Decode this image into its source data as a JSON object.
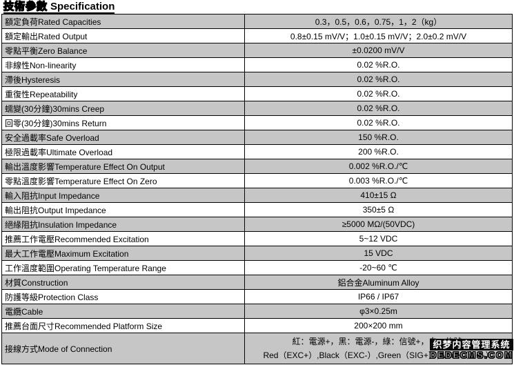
{
  "title": {
    "zh": "技術參數",
    "en": "Specification"
  },
  "colors": {
    "shaded_row": "#c6c6c6",
    "base_row": "#ffffff",
    "border": "#000000",
    "watermark_bg": "#0a0a0a"
  },
  "table": {
    "rows": [
      {
        "label": "額定負荷Rated Capacities",
        "value": "0.3，0.5，0.6，0.75，1，2（kg）"
      },
      {
        "label": "額定輸出Rated Output",
        "value": "0.8±0.15 mV/V；1.0±0.15 mV/V；2.0±0.2 mV/V"
      },
      {
        "label": "零點平衡Zero Balance",
        "value": "±0.0200 mV/V"
      },
      {
        "label": "非線性Non-linearity",
        "value": "0.02 %R.O."
      },
      {
        "label": "滯後Hysteresis",
        "value": "0.02 %R.O."
      },
      {
        "label": "重復性Repeatability",
        "value": "0.02 %R.O."
      },
      {
        "label": "蠕變(30分鐘)30mins Creep",
        "value": "0.02 %R.O."
      },
      {
        "label": "回零(30分鐘)30mins Return",
        "value": "0.02 %R.O."
      },
      {
        "label": "安全過載率Safe Overload",
        "value": "150 %R.O."
      },
      {
        "label": "極限過載率Ultimate Overload",
        "value": "200 %R.O."
      },
      {
        "label": "輸出溫度影響Temperature Effect On Output",
        "value": "0.002 %R.O./℃"
      },
      {
        "label": "零點溫度影響Temperature Effect On Zero",
        "value": "0.003 %R.O./℃"
      },
      {
        "label": "輸入阻抗Input Impedance",
        "value": "410±15 Ω"
      },
      {
        "label": "輸出阻抗Output Impedance",
        "value": "350±5 Ω"
      },
      {
        "label": "絕緣阻抗Insulation Impedance",
        "value": "≥5000 MΩ/(50VDC)"
      },
      {
        "label": "推薦工作電壓Recommended Excitation",
        "value": "5~12 VDC"
      },
      {
        "label": "最大工作電壓Maximum Excitation",
        "value": "15 VDC"
      },
      {
        "label": "工作溫度範圍Operating Temperature Range",
        "value": "-20~60 ℃"
      },
      {
        "label": "材質Construction",
        "value": "鋁合金Aluminum Alloy"
      },
      {
        "label": "防護等級Protection Class",
        "value": "IP66 / IP67"
      },
      {
        "label": "電纜Cable",
        "value": "φ3×0.25m"
      },
      {
        "label": "推薦台面尺寸Recommended Platform Size",
        "value": "200×200 mm"
      },
      {
        "label": "接線方式Mode of Connection",
        "value": "紅：電源+，黑：電源-，綠：信號+，白：信號-",
        "value2": "Red（EXC+）,Black（EXC-）,Green（SIG+）,White（SIG-）"
      }
    ]
  },
  "watermark": {
    "line1": "织梦内容管理系统",
    "line2": "DEDECMS.COM"
  }
}
